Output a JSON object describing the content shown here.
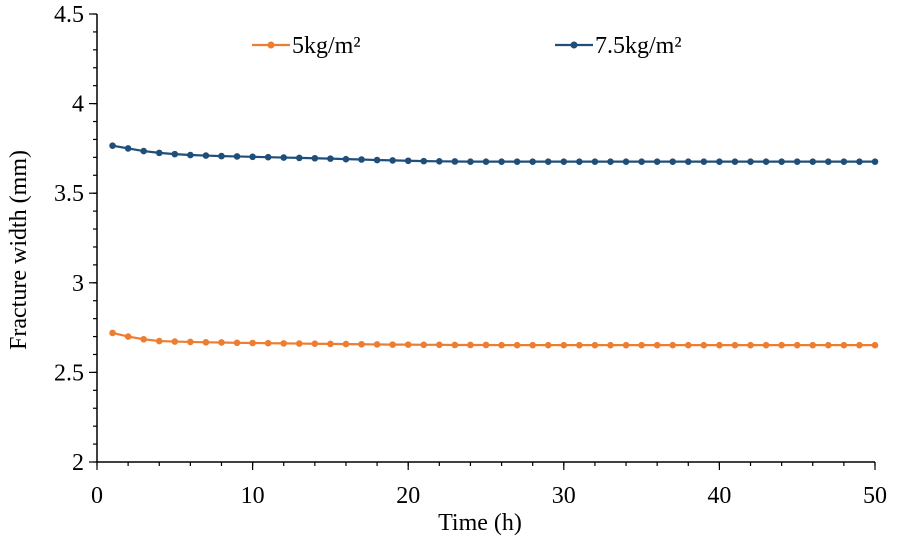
{
  "chart_data": {
    "type": "line",
    "title": "",
    "xlabel": "Time (h)",
    "ylabel": "Fracture width (mm)",
    "xlim": [
      0,
      50
    ],
    "ylim": [
      2,
      4.5
    ],
    "x_ticks": [
      0,
      10,
      20,
      30,
      40,
      50
    ],
    "x_tick_labels": [
      "0",
      "10",
      "20",
      "30",
      "40",
      "50"
    ],
    "x_minor_step": 2,
    "y_ticks": [
      2,
      2.5,
      3,
      3.5,
      4,
      4.5
    ],
    "y_tick_labels": [
      "2",
      "2.5",
      "3",
      "3.5",
      "4",
      "4.5"
    ],
    "y_minor_step": 0.1,
    "grid": false,
    "legend_position": "top",
    "x": [
      1,
      2,
      3,
      4,
      5,
      6,
      7,
      8,
      9,
      10,
      11,
      12,
      13,
      14,
      15,
      16,
      17,
      18,
      19,
      20,
      21,
      22,
      23,
      24,
      25,
      26,
      27,
      28,
      29,
      30,
      31,
      32,
      33,
      34,
      35,
      36,
      37,
      38,
      39,
      40,
      41,
      42,
      43,
      44,
      45,
      46,
      47,
      48,
      49,
      50
    ],
    "series": [
      {
        "name": "5kg/m²",
        "color": "#ED7D31",
        "values": [
          2.72,
          2.7,
          2.685,
          2.675,
          2.672,
          2.67,
          2.668,
          2.667,
          2.665,
          2.664,
          2.663,
          2.662,
          2.661,
          2.66,
          2.659,
          2.658,
          2.657,
          2.656,
          2.655,
          2.655,
          2.654,
          2.654,
          2.653,
          2.653,
          2.653,
          2.652,
          2.652,
          2.652,
          2.652,
          2.652,
          2.652,
          2.652,
          2.652,
          2.652,
          2.652,
          2.652,
          2.652,
          2.652,
          2.652,
          2.652,
          2.652,
          2.652,
          2.652,
          2.652,
          2.652,
          2.652,
          2.652,
          2.652,
          2.652,
          2.652
        ]
      },
      {
        "name": "7.5kg/m²",
        "color": "#1F4E79",
        "values": [
          3.765,
          3.75,
          3.735,
          3.725,
          3.718,
          3.713,
          3.71,
          3.707,
          3.705,
          3.703,
          3.701,
          3.699,
          3.697,
          3.695,
          3.693,
          3.69,
          3.688,
          3.685,
          3.683,
          3.681,
          3.679,
          3.678,
          3.677,
          3.676,
          3.676,
          3.676,
          3.676,
          3.676,
          3.676,
          3.676,
          3.676,
          3.676,
          3.676,
          3.676,
          3.676,
          3.676,
          3.676,
          3.676,
          3.676,
          3.676,
          3.676,
          3.676,
          3.676,
          3.676,
          3.676,
          3.676,
          3.676,
          3.676,
          3.676,
          3.676
        ]
      }
    ]
  }
}
